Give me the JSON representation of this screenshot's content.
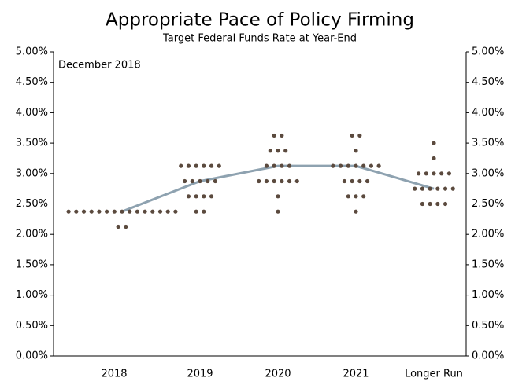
{
  "chart_data": {
    "type": "dot",
    "title": "Appropriate Pace of Policy Firming",
    "subtitle": "Target Federal Funds Rate at Year-End",
    "annotation": "December 2018",
    "categories": [
      "2018",
      "2019",
      "2020",
      "2021",
      "Longer Run"
    ],
    "dot_color": "#5b4a3e",
    "dots": [
      [
        2.375,
        2.375,
        2.375,
        2.375,
        2.375,
        2.375,
        2.375,
        2.375,
        2.375,
        2.375,
        2.375,
        2.375,
        2.375,
        2.375,
        2.375,
        2.125,
        2.125
      ],
      [
        3.125,
        3.125,
        3.125,
        3.125,
        3.125,
        3.125,
        2.875,
        2.875,
        2.875,
        2.875,
        2.875,
        2.625,
        2.625,
        2.625,
        2.625,
        2.375,
        2.375
      ],
      [
        3.625,
        3.625,
        3.375,
        3.375,
        3.375,
        3.125,
        3.125,
        3.125,
        3.125,
        2.875,
        2.875,
        2.875,
        2.875,
        2.875,
        2.875,
        2.625,
        2.375
      ],
      [
        3.625,
        3.625,
        3.375,
        3.125,
        3.125,
        3.125,
        3.125,
        3.125,
        3.125,
        3.125,
        2.875,
        2.875,
        2.875,
        2.875,
        2.625,
        2.625,
        2.625,
        2.375
      ],
      [
        3.5,
        3.25,
        3.0,
        3.0,
        3.0,
        3.0,
        3.0,
        2.75,
        2.75,
        2.75,
        2.75,
        2.75,
        2.75,
        2.5,
        2.5,
        2.5,
        2.5
      ]
    ],
    "median": {
      "color": "#8ea2b0",
      "values": [
        2.375,
        2.875,
        3.125,
        3.125,
        2.75
      ]
    },
    "ylim": [
      0,
      5
    ],
    "yticks": [
      {
        "value": 0,
        "label": "0.00%"
      },
      {
        "value": 0.5,
        "label": "0.50%"
      },
      {
        "value": 1,
        "label": "1.00%"
      },
      {
        "value": 1.5,
        "label": "1.50%"
      },
      {
        "value": 2,
        "label": "2.00%"
      },
      {
        "value": 2.5,
        "label": "2.50%"
      },
      {
        "value": 3,
        "label": "3.00%"
      },
      {
        "value": 3.5,
        "label": "3.50%"
      },
      {
        "value": 4,
        "label": "4.00%"
      },
      {
        "value": 4.5,
        "label": "4.50%"
      },
      {
        "value": 5,
        "label": "5.00%"
      }
    ]
  }
}
